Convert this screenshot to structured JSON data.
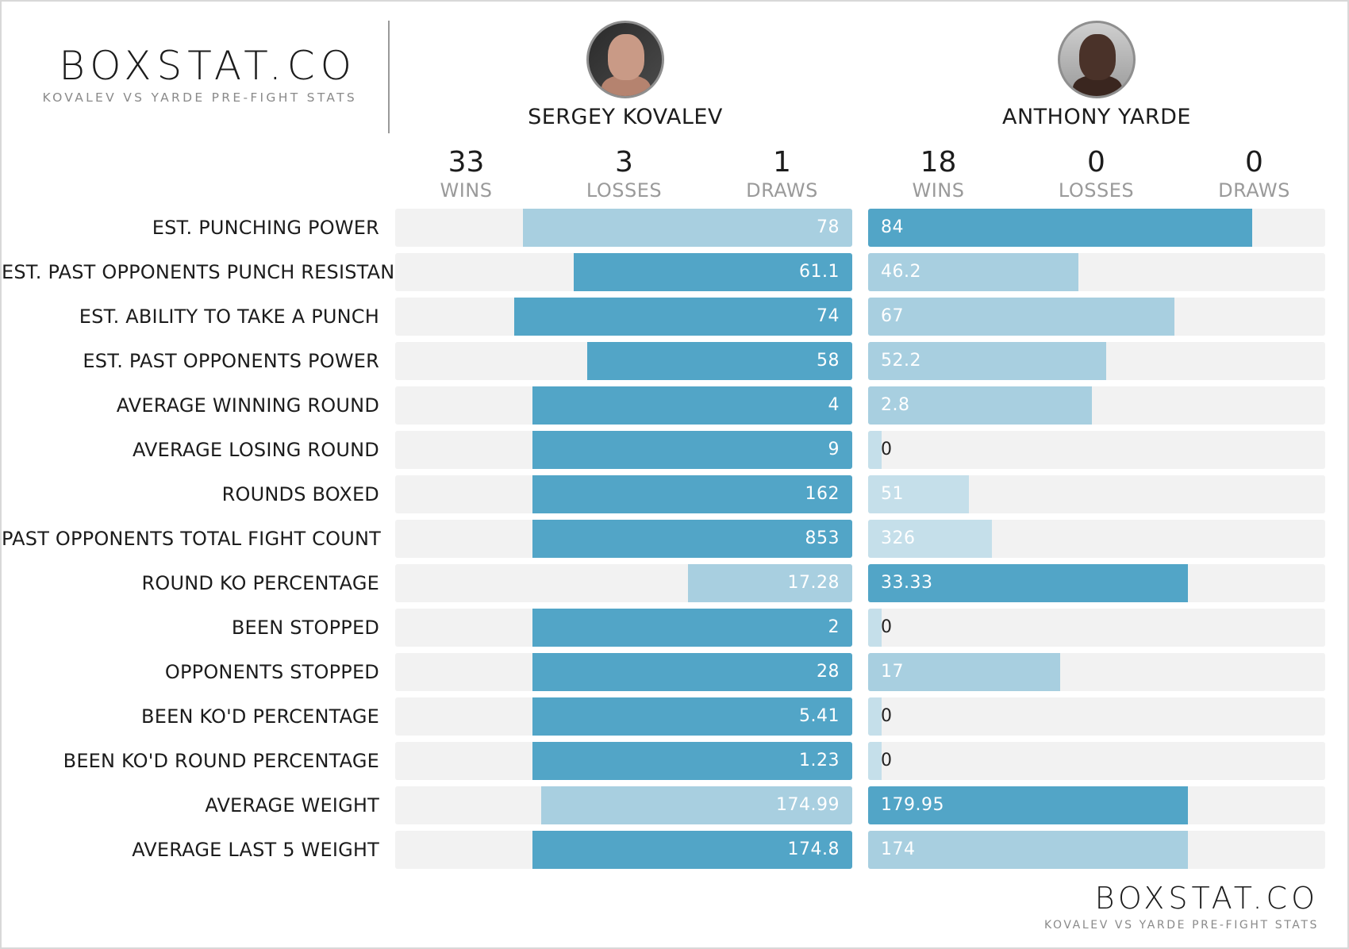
{
  "brand": {
    "title": "BOXSTAT.CO",
    "subtitle": "KOVALEV VS YARDE PRE-FIGHT STATS"
  },
  "colors": {
    "strong": "#52a5c7",
    "light": "#a8cfe0",
    "faint": "#c5dfea",
    "track": "#f2f2f2"
  },
  "fighters": [
    {
      "name": "SERGEY KOVALEV",
      "avatar_icon": "fighter-portrait-icon",
      "record": [
        {
          "value": "33",
          "label": "WINS"
        },
        {
          "value": "3",
          "label": "LOSSES"
        },
        {
          "value": "1",
          "label": "DRAWS"
        }
      ]
    },
    {
      "name": "ANTHONY YARDE",
      "avatar_icon": "fighter-portrait-icon",
      "record": [
        {
          "value": "18",
          "label": "WINS"
        },
        {
          "value": "0",
          "label": "LOSSES"
        },
        {
          "value": "0",
          "label": "DRAWS"
        }
      ]
    }
  ],
  "chart_data": {
    "type": "bar",
    "orientation": "horizontal-mirrored",
    "categories": [
      "EST. PUNCHING POWER",
      "EST. PAST OPPONENTS PUNCH RESISTANCE",
      "EST. ABILITY TO TAKE A PUNCH",
      "EST. PAST OPPONENTS POWER",
      "AVERAGE WINNING ROUND",
      "AVERAGE LOSING ROUND",
      "ROUNDS BOXED",
      "PAST OPPONENTS TOTAL FIGHT COUNT",
      "ROUND KO PERCENTAGE",
      "BEEN STOPPED",
      "OPPONENTS STOPPED",
      "BEEN KO'D PERCENTAGE",
      "BEEN KO'D ROUND PERCENTAGE",
      "AVERAGE WEIGHT",
      "AVERAGE LAST 5 WEIGHT"
    ],
    "series": [
      {
        "name": "SERGEY KOVALEV",
        "labels": [
          "78",
          "61.1",
          "74",
          "58",
          "4",
          "9",
          "162",
          "853",
          "17.28",
          "2",
          "28",
          "5.41",
          "1.23",
          "174.99",
          "174.8"
        ],
        "values": [
          78,
          61.1,
          74,
          58,
          4,
          9,
          162,
          853,
          17.28,
          2,
          28,
          5.41,
          1.23,
          174.99,
          174.8
        ],
        "fill": [
          0.72,
          0.61,
          0.74,
          0.58,
          0.7,
          0.7,
          0.7,
          0.7,
          0.36,
          0.7,
          0.7,
          0.7,
          0.7,
          0.68,
          0.7
        ],
        "shade": [
          "light",
          "strong",
          "strong",
          "strong",
          "strong",
          "strong",
          "strong",
          "strong",
          "light",
          "strong",
          "strong",
          "strong",
          "strong",
          "light",
          "strong"
        ]
      },
      {
        "name": "ANTHONY YARDE",
        "labels": [
          "84",
          "46.2",
          "67",
          "52.2",
          "2.8",
          "0",
          "51",
          "326",
          "33.33",
          "0",
          "17",
          "0",
          "0",
          "179.95",
          "174"
        ],
        "values": [
          84,
          46.2,
          67,
          52.2,
          2.8,
          0,
          51,
          326,
          33.33,
          0,
          17,
          0,
          0,
          179.95,
          174
        ],
        "fill": [
          0.84,
          0.46,
          0.67,
          0.52,
          0.49,
          0.03,
          0.22,
          0.27,
          0.7,
          0.03,
          0.42,
          0.03,
          0.03,
          0.7,
          0.7
        ],
        "shade": [
          "strong",
          "light",
          "light",
          "light",
          "light",
          "faint",
          "faint",
          "faint",
          "strong",
          "faint",
          "light",
          "faint",
          "faint",
          "strong",
          "light"
        ]
      }
    ]
  },
  "footer": {
    "title": "BOXSTAT.CO",
    "subtitle": "KOVALEV VS YARDE PRE-FIGHT STATS"
  }
}
